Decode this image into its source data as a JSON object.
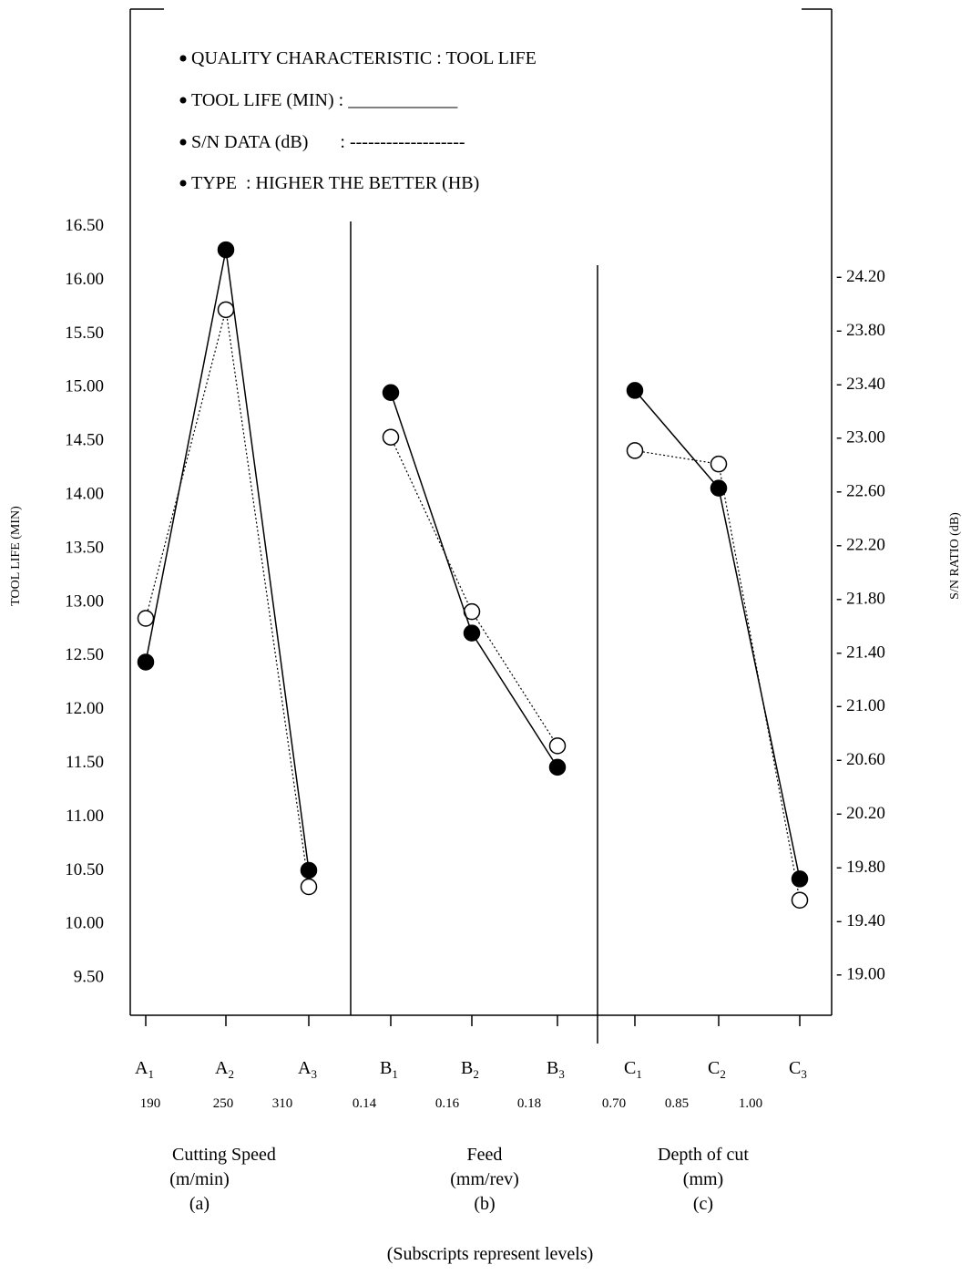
{
  "legend": {
    "items": [
      "QUALITY CHARACTERISTIC : TOOL LIFE",
      "TOOL LIFE (MIN) : ____________",
      "S/N DATA (dB)       : -------------------",
      "TYPE  : HIGHER THE BETTER (HB)"
    ]
  },
  "chart_data": {
    "type": "line",
    "left_axis": {
      "title": "TOOL LIFE (MIN)",
      "ticks": [
        "16.50",
        "16.00",
        "15.50",
        "15.00",
        "14.50",
        "14.00",
        "13.50",
        "13.00",
        "12.50",
        "12.00",
        "11.50",
        "11.00",
        "10.50",
        "10.00",
        "9.50"
      ],
      "range": [
        9.5,
        16.5
      ]
    },
    "right_axis": {
      "title": "S/N RATIO (dB)",
      "ticks": [
        "- 24.20",
        "- 23.80",
        "- 23.40",
        "- 23.00",
        "- 22.60",
        "- 22.20",
        "- 21.80",
        "- 21.40",
        "- 21.00",
        "- 20.60",
        "- 20.20",
        "- 19.80",
        "- 19.40",
        "- 19.00"
      ],
      "range": [
        19.0,
        24.2
      ]
    },
    "groups": [
      {
        "factor": "A",
        "name": "Cutting Speed",
        "unit": "(m/min)",
        "tag": "(a)",
        "levels": [
          "A",
          "A",
          "A"
        ],
        "subscripts": [
          "1",
          "2",
          "3"
        ],
        "level_values": [
          "190",
          "250",
          "310"
        ],
        "tool_life": [
          12.43,
          16.27,
          10.49
        ],
        "sn_ratio": [
          21.65,
          23.95,
          19.65
        ]
      },
      {
        "factor": "B",
        "name": "Feed",
        "unit": "(mm/rev)",
        "tag": "(b)",
        "levels": [
          "B",
          "B",
          "B"
        ],
        "subscripts": [
          "1",
          "2",
          "3"
        ],
        "level_values": [
          "0.14",
          "0.16",
          "0.18"
        ],
        "tool_life": [
          14.94,
          12.7,
          11.45
        ],
        "sn_ratio": [
          23.0,
          21.7,
          20.7
        ]
      },
      {
        "factor": "C",
        "name": "Depth of cut",
        "unit": "(mm)",
        "tag": "(c)",
        "levels": [
          "C",
          "C",
          "C"
        ],
        "subscripts": [
          "1",
          "2",
          "3"
        ],
        "level_values": [
          "0.70",
          "0.85",
          "1.00"
        ],
        "tool_life": [
          14.96,
          14.05,
          10.41
        ],
        "sn_ratio": [
          22.9,
          22.8,
          19.55
        ]
      }
    ],
    "series": [
      {
        "name": "TOOL LIFE (MIN)",
        "line": "solid",
        "marker": "filled-circle"
      },
      {
        "name": "S/N DATA (dB)",
        "line": "dotted",
        "marker": "open-circle"
      }
    ]
  },
  "footnote": "(Subscripts represent levels)"
}
